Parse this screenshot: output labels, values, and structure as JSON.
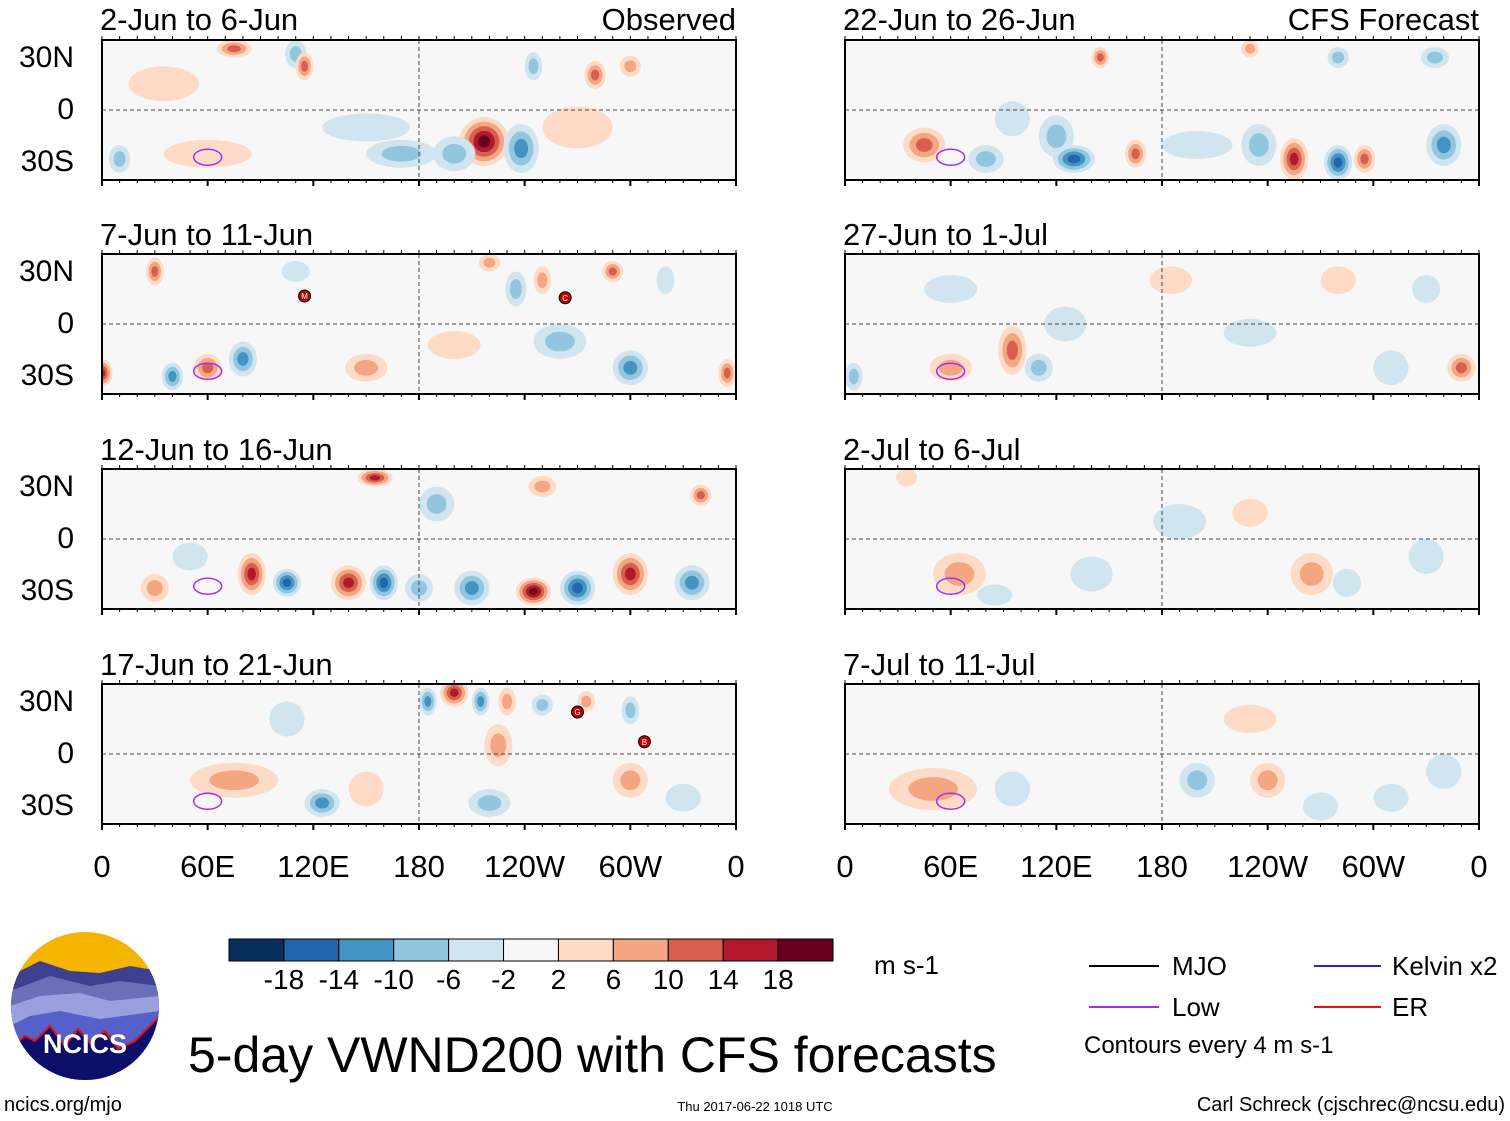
{
  "header": {
    "left_label": "Observed",
    "right_label": "CFS Forecast"
  },
  "panels": [
    {
      "title": "2-Jun to 6-Jun",
      "column": "observed",
      "row": 0,
      "anomalies": [
        [
          217,
          -18,
          20,
          14,
          14
        ],
        [
          238,
          -22,
          -12,
          10,
          14
        ],
        [
          200,
          -25,
          -8,
          12,
          10
        ],
        [
          170,
          -25,
          -8,
          20,
          8
        ],
        [
          110,
          32,
          -10,
          6,
          8
        ],
        [
          115,
          25,
          12,
          5,
          8
        ],
        [
          75,
          35,
          12,
          10,
          5
        ],
        [
          280,
          20,
          14,
          6,
          8
        ],
        [
          300,
          25,
          8,
          6,
          6
        ],
        [
          245,
          25,
          -8,
          5,
          8
        ],
        [
          35,
          15,
          6,
          20,
          10
        ],
        [
          60,
          -25,
          4,
          25,
          8
        ],
        [
          10,
          -28,
          -8,
          6,
          8
        ],
        [
          270,
          -10,
          6,
          20,
          12
        ],
        [
          150,
          -10,
          -4,
          25,
          8
        ]
      ]
    },
    {
      "title": "22-Jun to 26-Jun",
      "column": "forecast",
      "row": 0,
      "anomalies": [
        [
          45,
          -20,
          12,
          12,
          10
        ],
        [
          80,
          -28,
          -8,
          10,
          8
        ],
        [
          120,
          -15,
          -8,
          10,
          12
        ],
        [
          130,
          -28,
          -16,
          12,
          8
        ],
        [
          165,
          -25,
          12,
          6,
          8
        ],
        [
          235,
          -20,
          -8,
          10,
          12
        ],
        [
          255,
          -28,
          18,
          8,
          12
        ],
        [
          280,
          -30,
          -18,
          8,
          10
        ],
        [
          295,
          -28,
          12,
          6,
          8
        ],
        [
          340,
          -20,
          -12,
          10,
          12
        ],
        [
          200,
          -20,
          -4,
          20,
          8
        ],
        [
          145,
          30,
          12,
          5,
          6
        ],
        [
          335,
          30,
          -10,
          8,
          6
        ],
        [
          280,
          30,
          -10,
          6,
          6
        ],
        [
          230,
          35,
          10,
          5,
          5
        ],
        [
          95,
          -5,
          -6,
          10,
          10
        ]
      ]
    },
    {
      "title": "7-Jun to 11-Jun",
      "column": "observed",
      "row": 1,
      "anomalies": [
        [
          60,
          -25,
          14,
          8,
          8
        ],
        [
          80,
          -20,
          -14,
          8,
          10
        ],
        [
          40,
          -30,
          -14,
          6,
          8
        ],
        [
          0,
          -28,
          16,
          6,
          8
        ],
        [
          355,
          -28,
          14,
          5,
          8
        ],
        [
          150,
          -25,
          8,
          12,
          8
        ],
        [
          200,
          -12,
          6,
          15,
          8
        ],
        [
          260,
          -10,
          -8,
          15,
          10
        ],
        [
          300,
          -25,
          -12,
          10,
          10
        ],
        [
          235,
          20,
          -10,
          6,
          10
        ],
        [
          250,
          25,
          10,
          5,
          8
        ],
        [
          220,
          35,
          10,
          6,
          5
        ],
        [
          290,
          30,
          14,
          6,
          6
        ],
        [
          320,
          25,
          -6,
          5,
          8
        ],
        [
          30,
          30,
          12,
          5,
          8
        ],
        [
          110,
          30,
          -6,
          8,
          6
        ]
      ]
    },
    {
      "title": "27-Jun to 1-Jul",
      "column": "forecast",
      "row": 1,
      "anomalies": [
        [
          95,
          -15,
          14,
          8,
          14
        ],
        [
          60,
          -25,
          10,
          12,
          8
        ],
        [
          110,
          -25,
          -8,
          8,
          8
        ],
        [
          5,
          -30,
          -10,
          5,
          8
        ],
        [
          350,
          -25,
          14,
          8,
          8
        ],
        [
          125,
          0,
          -6,
          12,
          10
        ],
        [
          230,
          -5,
          -6,
          15,
          8
        ],
        [
          310,
          -25,
          -6,
          10,
          10
        ],
        [
          280,
          25,
          6,
          10,
          8
        ],
        [
          330,
          20,
          -6,
          8,
          8
        ],
        [
          185,
          25,
          4,
          12,
          8
        ],
        [
          60,
          20,
          -4,
          15,
          8
        ]
      ]
    },
    {
      "title": "12-Jun to 16-Jun",
      "column": "observed",
      "row": 2,
      "anomalies": [
        [
          85,
          -20,
          18,
          8,
          12
        ],
        [
          105,
          -25,
          -16,
          8,
          8
        ],
        [
          140,
          -25,
          16,
          10,
          10
        ],
        [
          160,
          -25,
          -16,
          8,
          10
        ],
        [
          180,
          -28,
          -10,
          8,
          8
        ],
        [
          210,
          -28,
          -14,
          10,
          10
        ],
        [
          245,
          -30,
          20,
          10,
          8
        ],
        [
          270,
          -28,
          -18,
          10,
          10
        ],
        [
          300,
          -20,
          16,
          10,
          12
        ],
        [
          335,
          -25,
          -12,
          10,
          10
        ],
        [
          30,
          -28,
          10,
          8,
          8
        ],
        [
          155,
          35,
          18,
          10,
          5
        ],
        [
          250,
          30,
          10,
          8,
          6
        ],
        [
          340,
          25,
          14,
          6,
          6
        ],
        [
          190,
          20,
          -8,
          10,
          10
        ],
        [
          50,
          -10,
          -6,
          10,
          8
        ]
      ]
    },
    {
      "title": "2-Jul to 6-Jul",
      "column": "forecast",
      "row": 2,
      "anomalies": [
        [
          65,
          -20,
          10,
          15,
          12
        ],
        [
          85,
          -32,
          -6,
          10,
          6
        ],
        [
          140,
          -20,
          -6,
          12,
          10
        ],
        [
          265,
          -20,
          8,
          12,
          12
        ],
        [
          285,
          -25,
          -6,
          8,
          8
        ],
        [
          330,
          -10,
          -4,
          10,
          10
        ],
        [
          190,
          10,
          -4,
          15,
          10
        ],
        [
          230,
          15,
          4,
          10,
          8
        ],
        [
          35,
          35,
          6,
          6,
          5
        ]
      ]
    },
    {
      "title": "17-Jun to 21-Jun",
      "column": "observed",
      "row": 3,
      "anomalies": [
        [
          200,
          35,
          18,
          8,
          8
        ],
        [
          185,
          30,
          -14,
          5,
          8
        ],
        [
          215,
          30,
          -12,
          5,
          8
        ],
        [
          230,
          30,
          10,
          5,
          8
        ],
        [
          250,
          28,
          -10,
          6,
          6
        ],
        [
          275,
          30,
          10,
          5,
          6
        ],
        [
          300,
          25,
          -8,
          5,
          8
        ],
        [
          225,
          5,
          8,
          8,
          12
        ],
        [
          75,
          -15,
          10,
          25,
          10
        ],
        [
          125,
          -28,
          -12,
          10,
          8
        ],
        [
          150,
          -20,
          6,
          10,
          10
        ],
        [
          220,
          -28,
          -10,
          12,
          8
        ],
        [
          300,
          -15,
          8,
          10,
          10
        ],
        [
          330,
          -25,
          -6,
          10,
          8
        ],
        [
          105,
          20,
          -6,
          10,
          10
        ]
      ]
    },
    {
      "title": "7-Jul to 11-Jul",
      "column": "forecast",
      "row": 3,
      "anomalies": [
        [
          50,
          -20,
          8,
          25,
          12
        ],
        [
          95,
          -20,
          -4,
          10,
          10
        ],
        [
          200,
          -15,
          -10,
          10,
          10
        ],
        [
          240,
          -15,
          10,
          10,
          10
        ],
        [
          270,
          -30,
          -6,
          10,
          8
        ],
        [
          310,
          -25,
          -4,
          10,
          8
        ],
        [
          340,
          -10,
          -6,
          10,
          10
        ],
        [
          230,
          20,
          4,
          15,
          8
        ]
      ]
    }
  ],
  "storms": [
    {
      "panel": 2,
      "lon": 115,
      "lat": 16,
      "label": "M"
    },
    {
      "panel": 2,
      "lon": 263,
      "lat": 15,
      "label": "C"
    },
    {
      "panel": 6,
      "lon": 270,
      "lat": 24,
      "label": "G"
    },
    {
      "panel": 6,
      "lon": 308,
      "lat": 7,
      "label": "B"
    }
  ],
  "axes": {
    "y_labels": [
      "30N",
      "0",
      "30S"
    ],
    "x_labels": [
      "0",
      "60E",
      "120E",
      "180",
      "120W",
      "60W",
      "0"
    ]
  },
  "colorbar": {
    "colors": [
      "#0a2f5e",
      "#2166ac",
      "#4393c3",
      "#92c5de",
      "#d1e5f0",
      "#f7f7f7",
      "#fddbc7",
      "#f4a582",
      "#d6604d",
      "#b2182b",
      "#67001f"
    ],
    "labels": [
      "-18",
      "-14",
      "-10",
      "-6",
      "-2",
      "2",
      "6",
      "10",
      "14",
      "18"
    ],
    "units": "m s-1"
  },
  "legend": {
    "items": [
      {
        "label": "MJO",
        "color": "#000000"
      },
      {
        "label": "Kelvin x2",
        "color": "#2222dd"
      },
      {
        "label": "Low",
        "color": "#a030f0"
      },
      {
        "label": "ER",
        "color": "#ee1111"
      }
    ],
    "note": "Contours every 4 m s-1"
  },
  "logo": {
    "text": "NCICS"
  },
  "title": "5-day VWND200 with CFS forecasts",
  "footer": {
    "url": "ncics.org/mjo",
    "timestamp": "Thu 2017-06-22 1018 UTC",
    "credit": "Carl Schreck (cjschrec@ncsu.edu)"
  }
}
